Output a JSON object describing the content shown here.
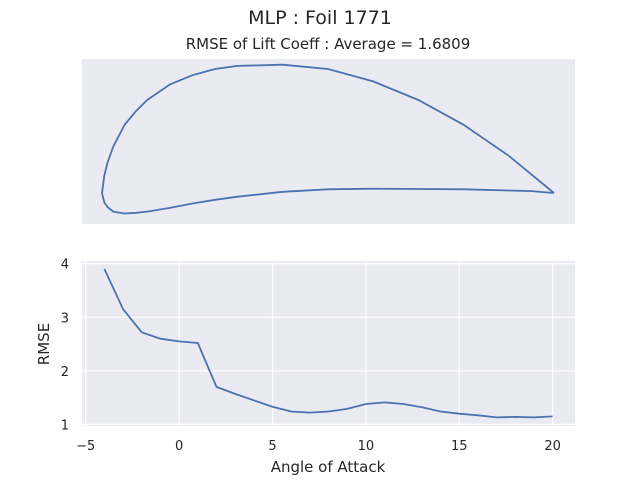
{
  "figure": {
    "suptitle": "MLP   :   Foil 1771",
    "title": "RMSE of Lift Coeff : Average = 1.6809"
  },
  "colors": {
    "line": "#4c72b0",
    "axes_bg": "#eaeaf2",
    "grid": "#ffffff"
  },
  "chart_data": [
    {
      "type": "line",
      "panel": "airfoil-profile",
      "title": "",
      "xlabel": "",
      "ylabel": "",
      "grid": false,
      "x": [
        1.0,
        0.95,
        0.9,
        0.8,
        0.7,
        0.6,
        0.5,
        0.4,
        0.3,
        0.25,
        0.2,
        0.15,
        0.1,
        0.075,
        0.05,
        0.025,
        0.0125,
        0.005,
        0.0,
        0.005,
        0.0125,
        0.025,
        0.05,
        0.075,
        0.1,
        0.15,
        0.2,
        0.25,
        0.3,
        0.4,
        0.5,
        0.6,
        0.7,
        0.8,
        0.9,
        0.95,
        1.0
      ],
      "y": [
        0.0,
        0.03,
        0.06,
        0.11,
        0.15,
        0.18,
        0.2,
        0.207,
        0.205,
        0.2,
        0.19,
        0.175,
        0.15,
        0.132,
        0.11,
        0.075,
        0.05,
        0.028,
        0.0,
        -0.015,
        -0.023,
        -0.03,
        -0.033,
        -0.032,
        -0.03,
        -0.024,
        -0.017,
        -0.011,
        -0.006,
        0.002,
        0.006,
        0.007,
        0.0065,
        0.006,
        0.004,
        0.003,
        0.0
      ]
    },
    {
      "type": "line",
      "panel": "rmse-vs-aoa",
      "title": "",
      "xlabel": "Angle of Attack",
      "ylabel": "RMSE",
      "grid": true,
      "xlim": [
        -5.2,
        21.2
      ],
      "ylim": [
        0.97,
        4.05
      ],
      "xticks": [
        -5,
        0,
        5,
        10,
        15,
        20
      ],
      "yticks": [
        1,
        2,
        3,
        4
      ],
      "x": [
        -4,
        -3,
        -2,
        -1,
        0,
        1,
        2,
        3,
        4,
        5,
        6,
        7,
        8,
        9,
        10,
        11,
        12,
        13,
        14,
        15,
        16,
        17,
        18,
        19,
        20
      ],
      "y": [
        3.9,
        3.15,
        2.72,
        2.6,
        2.55,
        2.52,
        1.7,
        1.57,
        1.45,
        1.33,
        1.24,
        1.22,
        1.24,
        1.29,
        1.38,
        1.41,
        1.38,
        1.32,
        1.24,
        1.2,
        1.17,
        1.13,
        1.14,
        1.13,
        1.15
      ]
    }
  ]
}
